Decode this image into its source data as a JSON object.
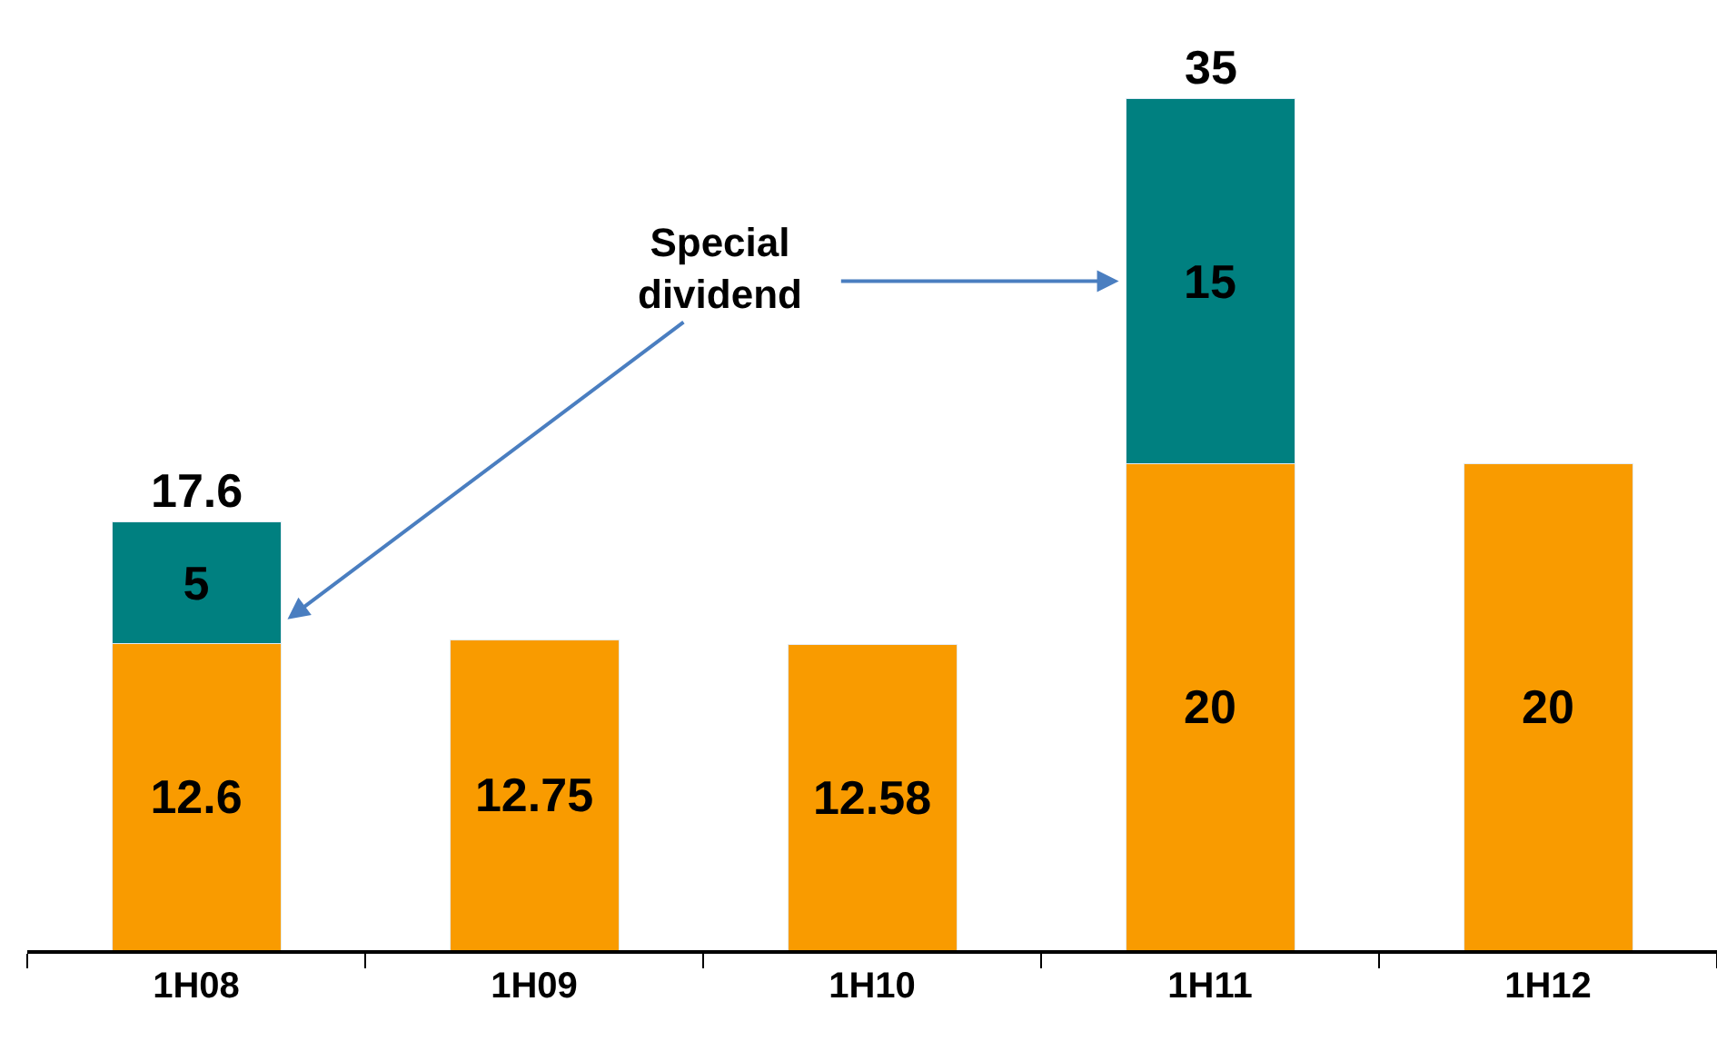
{
  "chart_data": {
    "type": "bar",
    "stacked": true,
    "categories": [
      "1H08",
      "1H09",
      "1H10",
      "1H11",
      "1H12"
    ],
    "series": [
      {
        "color": "#f99b00",
        "values": [
          12.6,
          12.75,
          12.58,
          20,
          20
        ]
      },
      {
        "color": "#008080",
        "values": [
          5,
          null,
          null,
          15,
          null
        ]
      }
    ],
    "data_labels": true,
    "totals": [
      "17.6",
      null,
      null,
      "35",
      null
    ],
    "annotations": [
      "Special dividend"
    ],
    "legend": false,
    "tick_labels": "x"
  }
}
